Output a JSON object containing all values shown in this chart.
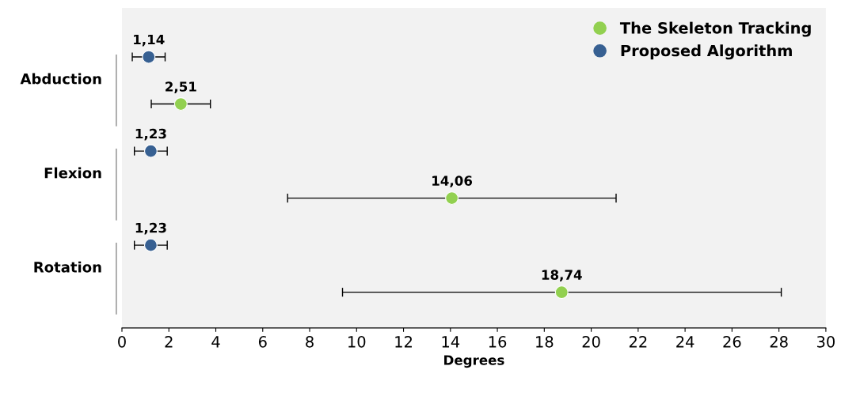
{
  "chart_data": {
    "type": "scatter",
    "orientation": "horizontal",
    "xlabel": "Degrees",
    "categories": [
      "Abduction",
      "Flexion",
      "Rotation"
    ],
    "series": [
      {
        "name": "The Skeleton Tracking",
        "color": "#92d050",
        "values": [
          2.51,
          14.06,
          18.74
        ],
        "errors": [
          1.26,
          7.0,
          [
            9.4,
            28.1
          ]
        ],
        "value_labels": [
          "2,51",
          "14,06",
          "18,74"
        ]
      },
      {
        "name": "Proposed Algorithm",
        "color": "#376092",
        "values": [
          1.14,
          1.23,
          1.23
        ],
        "errors": [
          0.7,
          0.7,
          0.7
        ],
        "value_labels": [
          "1,14",
          "1,23",
          "1,23"
        ]
      }
    ],
    "xlim": [
      0,
      30
    ],
    "xticks": [
      0,
      2,
      4,
      6,
      8,
      10,
      12,
      14,
      16,
      18,
      20,
      22,
      24,
      26,
      28,
      30
    ],
    "grid": false,
    "legend": "top right",
    "marker": "circle"
  }
}
